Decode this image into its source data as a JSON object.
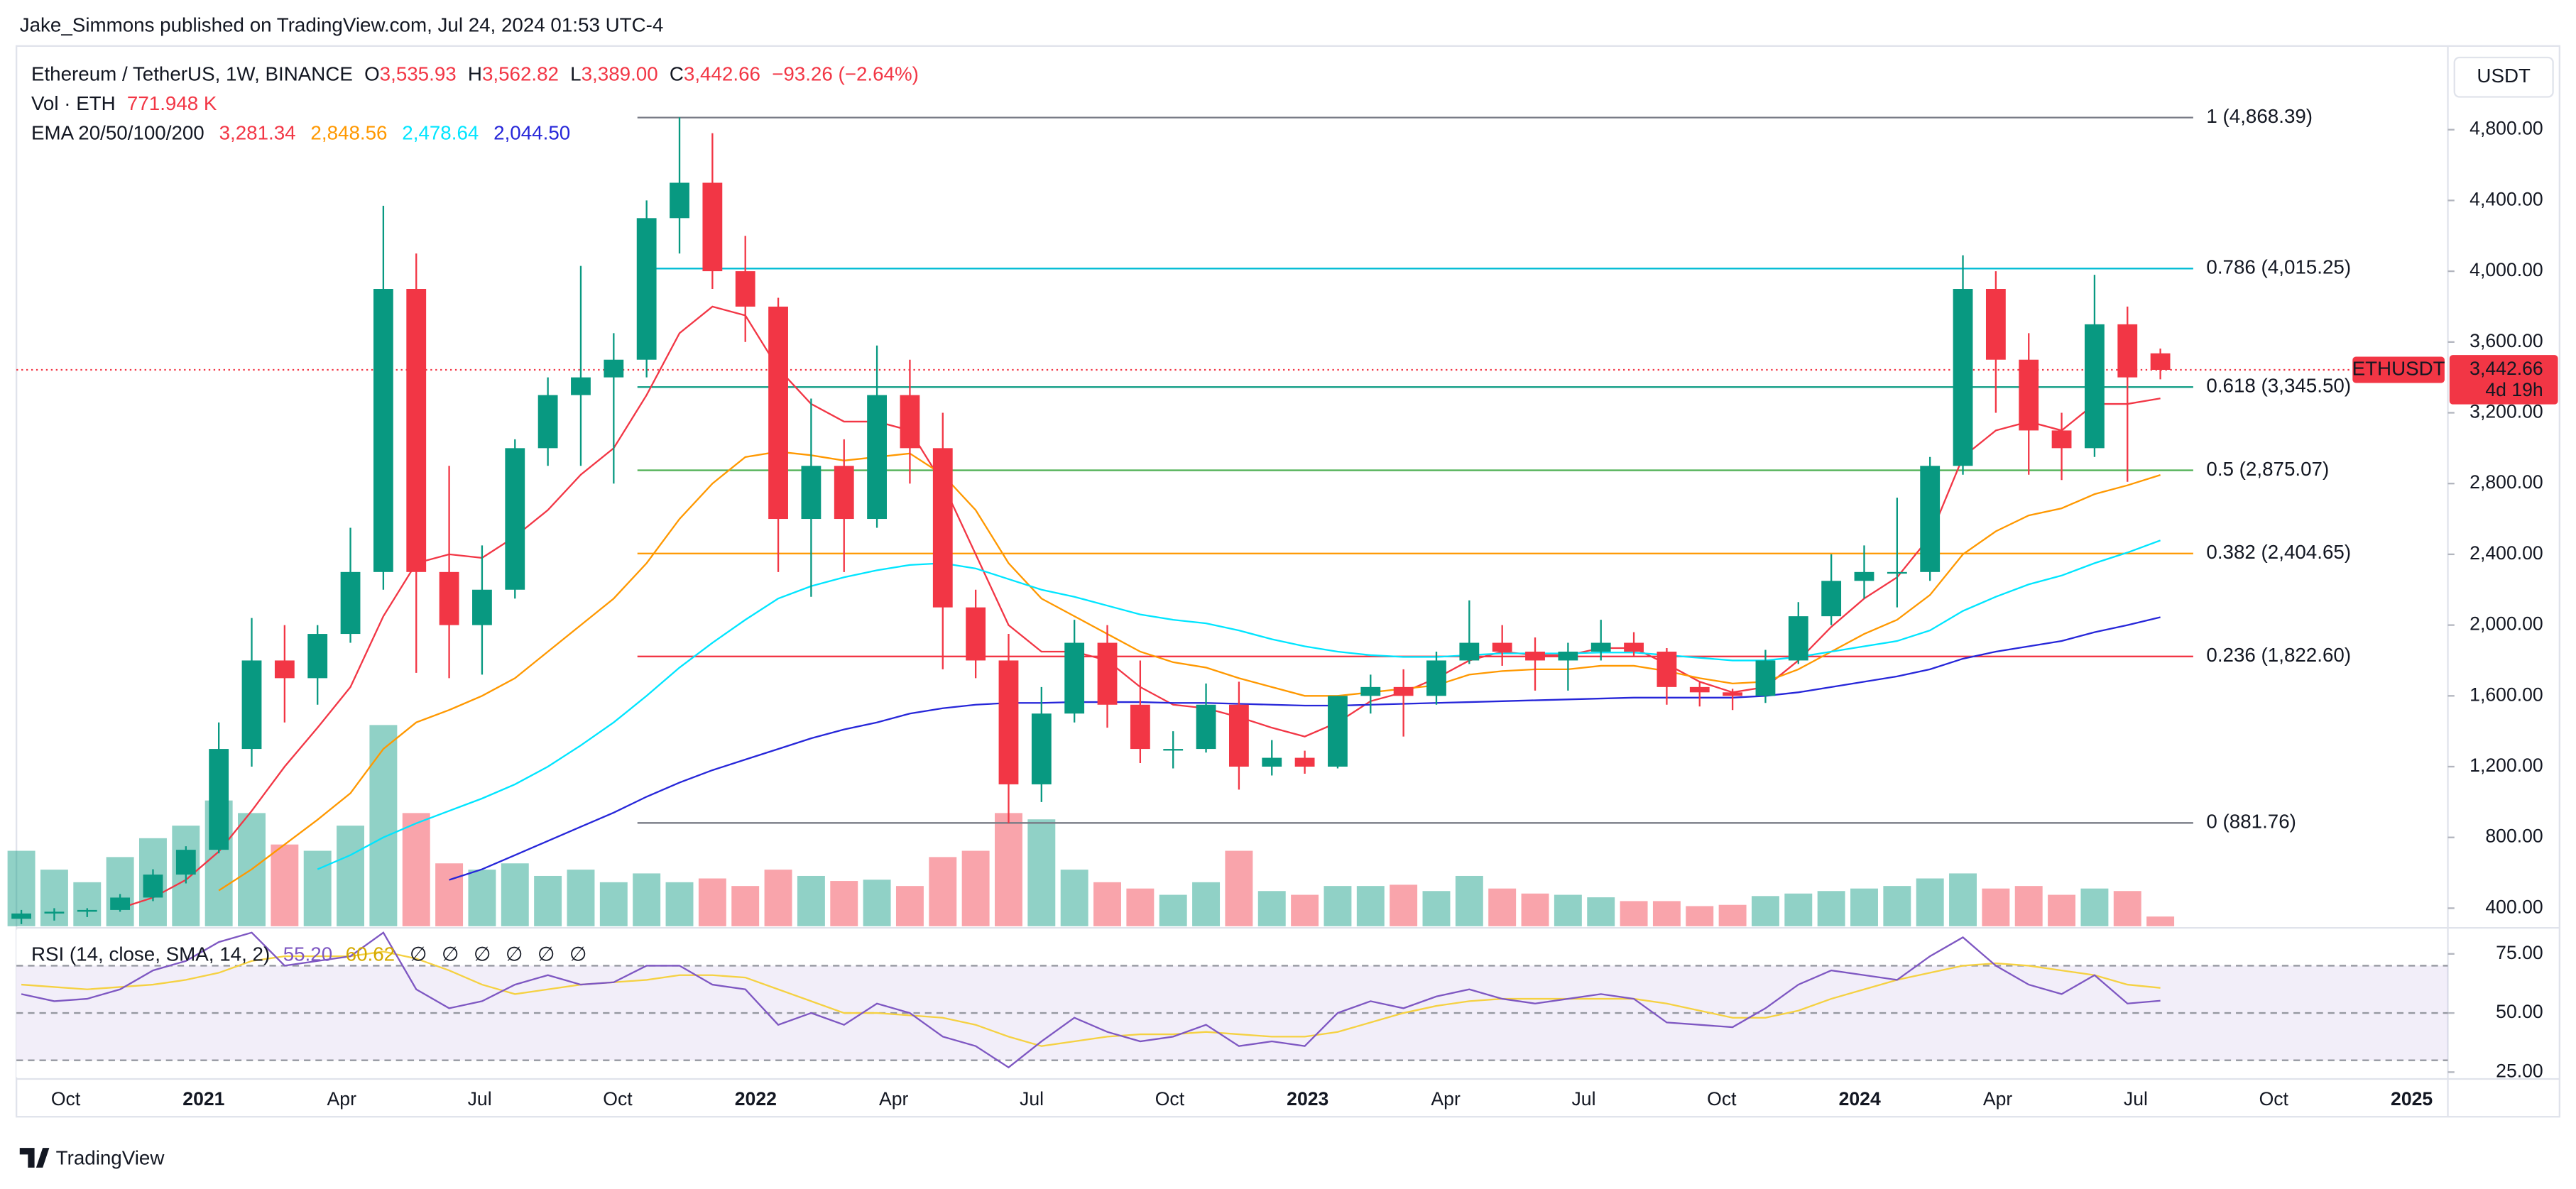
{
  "header": {
    "published": "Jake_Simmons published on TradingView.com, Jul 24, 2024 01:53 UTC-4"
  },
  "chart_data": {
    "type": "candlestick",
    "currency": "USDT",
    "legend": {
      "symbol": "Ethereum / TetherUS, 1W, BINANCE",
      "ohlc": [
        {
          "key": "O",
          "value": "3,535.93"
        },
        {
          "key": "H",
          "value": "3,562.82"
        },
        {
          "key": "L",
          "value": "3,389.00"
        },
        {
          "key": "C",
          "value": "3,442.66"
        }
      ],
      "change": "−93.26 (−2.64%)",
      "volume_title": "Vol · ETH",
      "volume_value": "771.948 K",
      "ema_title": "EMA 20/50/100/200"
    },
    "up_color": "#089981",
    "down_color": "#f23645",
    "candles": [
      [
        340,
        390,
        310,
        370
      ],
      [
        370,
        400,
        330,
        380
      ],
      [
        380,
        400,
        350,
        390
      ],
      [
        390,
        480,
        380,
        460
      ],
      [
        460,
        620,
        440,
        590
      ],
      [
        590,
        750,
        540,
        730
      ],
      [
        730,
        1450,
        710,
        1300
      ],
      [
        1300,
        2040,
        1200,
        1800
      ],
      [
        1800,
        2000,
        1450,
        1700
      ],
      [
        1700,
        2000,
        1550,
        1950
      ],
      [
        1950,
        2550,
        1900,
        2300
      ],
      [
        2300,
        4370,
        2200,
        3900
      ],
      [
        3900,
        4100,
        1730,
        2300
      ],
      [
        2300,
        2900,
        1700,
        2000
      ],
      [
        2000,
        2450,
        1720,
        2200
      ],
      [
        2200,
        3050,
        2150,
        3000
      ],
      [
        3000,
        3400,
        2900,
        3300
      ],
      [
        3300,
        4030,
        2900,
        3400
      ],
      [
        3400,
        3650,
        2800,
        3500
      ],
      [
        3500,
        4400,
        3400,
        4300
      ],
      [
        4300,
        4870,
        4100,
        4500
      ],
      [
        4500,
        4780,
        3900,
        4000
      ],
      [
        4000,
        4200,
        3600,
        3800
      ],
      [
        3800,
        3850,
        2300,
        2600
      ],
      [
        2600,
        3280,
        2160,
        2900
      ],
      [
        2900,
        3050,
        2300,
        2600
      ],
      [
        2600,
        3580,
        2550,
        3300
      ],
      [
        3300,
        3500,
        2800,
        3000
      ],
      [
        3000,
        3200,
        1750,
        2100
      ],
      [
        2100,
        2200,
        1700,
        1800
      ],
      [
        1800,
        1950,
        880,
        1100
      ],
      [
        1100,
        1650,
        1000,
        1500
      ],
      [
        1500,
        2030,
        1450,
        1900
      ],
      [
        1900,
        2000,
        1420,
        1550
      ],
      [
        1550,
        1800,
        1220,
        1300
      ],
      [
        1300,
        1400,
        1190,
        1300
      ],
      [
        1300,
        1670,
        1280,
        1550
      ],
      [
        1550,
        1680,
        1070,
        1200
      ],
      [
        1200,
        1350,
        1150,
        1250
      ],
      [
        1250,
        1290,
        1160,
        1200
      ],
      [
        1200,
        1600,
        1190,
        1600
      ],
      [
        1600,
        1720,
        1500,
        1650
      ],
      [
        1650,
        1750,
        1370,
        1600
      ],
      [
        1600,
        1850,
        1550,
        1800
      ],
      [
        1800,
        2140,
        1780,
        1900
      ],
      [
        1900,
        2000,
        1770,
        1850
      ],
      [
        1850,
        1930,
        1630,
        1800
      ],
      [
        1800,
        1900,
        1630,
        1850
      ],
      [
        1850,
        2030,
        1800,
        1900
      ],
      [
        1900,
        1960,
        1820,
        1850
      ],
      [
        1850,
        1870,
        1550,
        1650
      ],
      [
        1650,
        1680,
        1540,
        1620
      ],
      [
        1620,
        1640,
        1520,
        1600
      ],
      [
        1600,
        1860,
        1560,
        1800
      ],
      [
        1800,
        2130,
        1780,
        2050
      ],
      [
        2050,
        2400,
        2000,
        2250
      ],
      [
        2250,
        2450,
        2150,
        2300
      ],
      [
        2300,
        2720,
        2100,
        2300
      ],
      [
        2300,
        2950,
        2250,
        2900
      ],
      [
        2900,
        4090,
        2850,
        3900
      ],
      [
        3900,
        4000,
        3200,
        3500
      ],
      [
        3500,
        3650,
        2850,
        3100
      ],
      [
        3100,
        3200,
        2820,
        3000
      ],
      [
        3000,
        3980,
        2950,
        3700
      ],
      [
        3700,
        3800,
        2810,
        3400
      ],
      [
        3535.93,
        3562.82,
        3389,
        3442.66
      ]
    ],
    "volume": [
      6000,
      4500,
      3500,
      5500,
      7000,
      8000,
      10000,
      9000,
      6500,
      6000,
      8000,
      16000,
      9000,
      5000,
      4500,
      5000,
      4000,
      4500,
      3500,
      4200,
      3500,
      3800,
      3200,
      4500,
      4000,
      3600,
      3700,
      3200,
      5500,
      6000,
      9000,
      8500,
      4500,
      3500,
      3000,
      2500,
      3500,
      6000,
      2800,
      2500,
      3200,
      3200,
      3300,
      2800,
      4000,
      3000,
      2600,
      2500,
      2300,
      2000,
      2000,
      1600,
      1700,
      2400,
      2600,
      2800,
      3000,
      3200,
      3800,
      4200,
      3000,
      3200,
      2500,
      3000,
      2800,
      771.948
    ],
    "volume_lim": [
      0,
      70000
    ],
    "ylim": [
      298,
      5273
    ],
    "yticks": [
      {
        "value": 400,
        "label": "400.00"
      },
      {
        "value": 800,
        "label": "800.00"
      },
      {
        "value": 1200,
        "label": "1,200.00"
      },
      {
        "value": 1600,
        "label": "1,600.00"
      },
      {
        "value": 2000,
        "label": "2,000.00"
      },
      {
        "value": 2400,
        "label": "2,400.00"
      },
      {
        "value": 2800,
        "label": "2,800.00"
      },
      {
        "value": 3200,
        "label": "3,200.00"
      },
      {
        "value": 3600,
        "label": "3,600.00"
      },
      {
        "value": 4000,
        "label": "4,000.00"
      },
      {
        "value": 4400,
        "label": "4,400.00"
      },
      {
        "value": 4800,
        "label": "4,800.00"
      }
    ],
    "ema": [
      {
        "color": "#f23645",
        "value_label": "3,281.34",
        "values": [
          null,
          null,
          null,
          400,
          460,
          560,
          720,
          950,
          1200,
          1420,
          1650,
          2050,
          2350,
          2400,
          2380,
          2500,
          2650,
          2850,
          3000,
          3300,
          3650,
          3800,
          3750,
          3450,
          3250,
          3150,
          3150,
          3100,
          2800,
          2400,
          2000,
          1850,
          1850,
          1800,
          1650,
          1550,
          1530,
          1480,
          1420,
          1370,
          1450,
          1570,
          1620,
          1700,
          1800,
          1850,
          1830,
          1830,
          1870,
          1870,
          1780,
          1680,
          1620,
          1650,
          1800,
          1990,
          2150,
          2270,
          2500,
          2950,
          3100,
          3150,
          3100,
          3250,
          3250,
          3281.34
        ]
      },
      {
        "color": "#ff9800",
        "value_label": "2,848.56",
        "values": [
          null,
          null,
          null,
          null,
          null,
          null,
          500,
          620,
          760,
          900,
          1050,
          1300,
          1450,
          1520,
          1600,
          1700,
          1850,
          2000,
          2150,
          2350,
          2600,
          2800,
          2950,
          2980,
          2960,
          2930,
          2950,
          2970,
          2850,
          2650,
          2350,
          2150,
          2050,
          1950,
          1850,
          1790,
          1760,
          1700,
          1650,
          1600,
          1600,
          1620,
          1640,
          1660,
          1720,
          1740,
          1750,
          1750,
          1770,
          1770,
          1740,
          1700,
          1670,
          1680,
          1750,
          1850,
          1950,
          2030,
          2170,
          2400,
          2530,
          2620,
          2660,
          2740,
          2790,
          2848.56
        ]
      },
      {
        "color": "#00e5ff",
        "value_label": "2,478.64",
        "values": [
          null,
          null,
          null,
          null,
          null,
          null,
          null,
          null,
          null,
          620,
          700,
          800,
          880,
          950,
          1020,
          1100,
          1200,
          1320,
          1450,
          1600,
          1760,
          1900,
          2030,
          2150,
          2220,
          2270,
          2310,
          2340,
          2350,
          2320,
          2260,
          2200,
          2160,
          2110,
          2060,
          2030,
          2010,
          1970,
          1920,
          1880,
          1850,
          1830,
          1820,
          1820,
          1830,
          1840,
          1840,
          1840,
          1845,
          1845,
          1830,
          1815,
          1800,
          1800,
          1820,
          1850,
          1880,
          1910,
          1970,
          2080,
          2160,
          2230,
          2280,
          2350,
          2410,
          2478.64
        ]
      },
      {
        "color": "#2626d9",
        "value_label": "2,044.50",
        "values": [
          null,
          null,
          null,
          null,
          null,
          null,
          null,
          null,
          null,
          null,
          null,
          null,
          null,
          560,
          620,
          700,
          780,
          860,
          940,
          1030,
          1110,
          1180,
          1240,
          1300,
          1360,
          1410,
          1450,
          1500,
          1530,
          1550,
          1560,
          1560,
          1565,
          1565,
          1565,
          1560,
          1560,
          1555,
          1550,
          1545,
          1545,
          1550,
          1555,
          1560,
          1565,
          1570,
          1575,
          1580,
          1585,
          1590,
          1590,
          1590,
          1590,
          1600,
          1620,
          1650,
          1680,
          1710,
          1750,
          1810,
          1850,
          1880,
          1910,
          1960,
          2000,
          2044.5
        ]
      }
    ],
    "fib_levels": [
      {
        "value": 4868.39,
        "label": "1 (4,868.39)",
        "color": "#787b86"
      },
      {
        "value": 4015.25,
        "label": "0.786 (4,015.25)",
        "color": "#00bcd4"
      },
      {
        "value": 3345.5,
        "label": "0.618 (3,345.50)",
        "color": "#089981"
      },
      {
        "value": 2875.07,
        "label": "0.5 (2,875.07)",
        "color": "#4caf50"
      },
      {
        "value": 2404.65,
        "label": "0.382 (2,404.65)",
        "color": "#ff9800"
      },
      {
        "value": 1822.6,
        "label": "0.236 (1,822.60)",
        "color": "#f23645"
      },
      {
        "value": 881.76,
        "label": "0 (881.76)",
        "color": "#787b86"
      }
    ],
    "last_price": {
      "value": 3442.66,
      "label": "3,442.66",
      "symbol": "ETHUSDT",
      "countdown": "4d 19h"
    },
    "xticks": [
      {
        "label": "Oct",
        "bold": false
      },
      {
        "label": "2021",
        "bold": true
      },
      {
        "label": "Apr",
        "bold": false
      },
      {
        "label": "Jul",
        "bold": false
      },
      {
        "label": "Oct",
        "bold": false
      },
      {
        "label": "2022",
        "bold": true
      },
      {
        "label": "Apr",
        "bold": false
      },
      {
        "label": "Jul",
        "bold": false
      },
      {
        "label": "Oct",
        "bold": false
      },
      {
        "label": "2023",
        "bold": true
      },
      {
        "label": "Apr",
        "bold": false
      },
      {
        "label": "Jul",
        "bold": false
      },
      {
        "label": "Oct",
        "bold": false
      },
      {
        "label": "2024",
        "bold": true
      },
      {
        "label": "Apr",
        "bold": false
      },
      {
        "label": "Jul",
        "bold": false
      },
      {
        "label": "Oct",
        "bold": false
      },
      {
        "label": "2025",
        "bold": true
      }
    ],
    "rsi": {
      "title": "RSI (14, close, SMA, 14, 2)",
      "color": "#7e57c2",
      "value_label": "55.20",
      "values": [
        58,
        55,
        56,
        60,
        68,
        72,
        80,
        84,
        70,
        72,
        74,
        84,
        60,
        52,
        55,
        62,
        66,
        62,
        63,
        70,
        70,
        62,
        60,
        45,
        50,
        45,
        54,
        50,
        40,
        36,
        27,
        38,
        48,
        42,
        38,
        40,
        45,
        36,
        38,
        36,
        50,
        55,
        52,
        57,
        60,
        56,
        54,
        56,
        58,
        56,
        46,
        45,
        44,
        52,
        62,
        68,
        66,
        64,
        74,
        82,
        70,
        62,
        58,
        66,
        54,
        55.2
      ],
      "sma": {
        "color": "#f5d142",
        "value_label": "60.62",
        "values": [
          62,
          61,
          60,
          61,
          62,
          64,
          67,
          72,
          74,
          74,
          74,
          76,
          73,
          68,
          62,
          58,
          60,
          62,
          63,
          64,
          66,
          66,
          65,
          60,
          55,
          50,
          50,
          49,
          48,
          45,
          40,
          36,
          38,
          40,
          41,
          41,
          42,
          41,
          40,
          40,
          42,
          46,
          50,
          53,
          55,
          56,
          56,
          56,
          56,
          56,
          54,
          51,
          48,
          48,
          51,
          56,
          60,
          64,
          67,
          70,
          71,
          70,
          68,
          66,
          62,
          60.62
        ]
      },
      "ylim": [
        22.8,
        85.3
      ],
      "yticks": [
        {
          "value": 75,
          "label": "75.00"
        },
        {
          "value": 50,
          "label": "50.00"
        },
        {
          "value": 25,
          "label": "25.00"
        }
      ],
      "levels": [
        70,
        50,
        30
      ],
      "markers": [
        "∅",
        "∅",
        "∅",
        "∅",
        "∅",
        "∅"
      ]
    }
  },
  "footer": {
    "brand": "TradingView"
  }
}
